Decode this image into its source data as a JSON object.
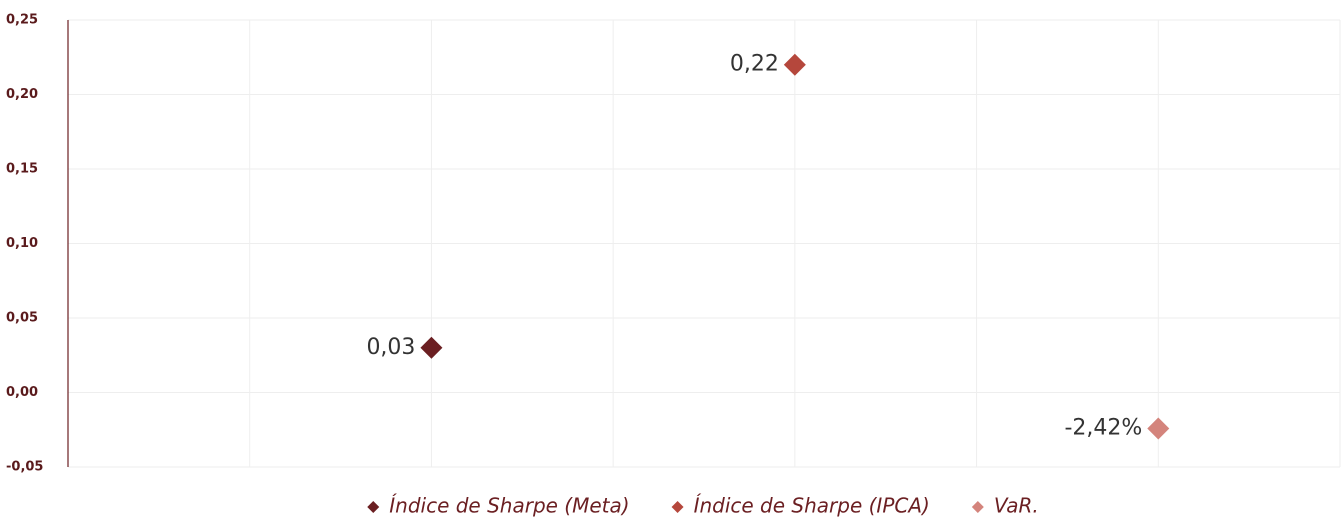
{
  "chart_data": {
    "type": "scatter",
    "xlim": [
      0,
      7
    ],
    "xticks": [
      0,
      1,
      2,
      3,
      4,
      5,
      6,
      7
    ],
    "ylim": [
      -0.05,
      0.25
    ],
    "yticks": [
      {
        "value": -0.05,
        "label": "-0,05"
      },
      {
        "value": 0,
        "label": "0,00"
      },
      {
        "value": 0.05,
        "label": "0,05"
      },
      {
        "value": 0.1,
        "label": "0,10"
      },
      {
        "value": 0.15,
        "label": "0,15"
      },
      {
        "value": 0.2,
        "label": "0,20"
      },
      {
        "value": 0.25,
        "label": "0,25"
      }
    ],
    "grid": true,
    "legend": "bottom",
    "series": [
      {
        "name": "Índice de Sharpe (Meta)",
        "color": "#6b1f22",
        "x": [
          2
        ],
        "values": [
          0.03
        ],
        "value_labels": [
          "0,03"
        ]
      },
      {
        "name": "Índice de Sharpe (IPCA)",
        "color": "#b5473c",
        "x": [
          4
        ],
        "values": [
          0.22
        ],
        "value_labels": [
          "0,22"
        ]
      },
      {
        "name": "VaR.",
        "color": "#d4847c",
        "x": [
          6
        ],
        "values": [
          -0.0242
        ],
        "value_labels": [
          "-2,42%"
        ]
      }
    ]
  }
}
